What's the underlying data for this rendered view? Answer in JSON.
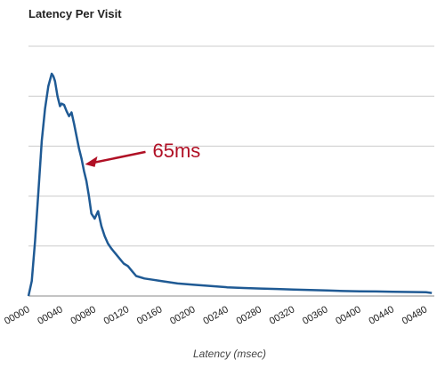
{
  "chart_data": {
    "type": "line",
    "title": "Latency Per Visit",
    "xlabel": "Latency (msec)",
    "ylabel": "",
    "xlim": [
      0,
      490
    ],
    "ylim": [
      0,
      100
    ],
    "x_ticks": [
      0,
      40,
      80,
      120,
      160,
      200,
      240,
      280,
      320,
      360,
      400,
      440,
      480
    ],
    "x_tick_labels": [
      "00000",
      "00040",
      "00080",
      "00120",
      "00160",
      "00200",
      "00240",
      "00280",
      "00320",
      "00360",
      "00400",
      "00440",
      "00480"
    ],
    "y_gridlines": [
      20,
      40,
      60,
      80,
      100
    ],
    "grid": true,
    "series": [
      {
        "color": "#1f5a94",
        "x": [
          0,
          4,
          8,
          12,
          16,
          20,
          24,
          28,
          30,
          32,
          35,
          38,
          40,
          43,
          46,
          49,
          52,
          55,
          58,
          61,
          64,
          67,
          70,
          73,
          76,
          80,
          84,
          88,
          92,
          96,
          100,
          105,
          110,
          115,
          120,
          125,
          130,
          140,
          150,
          160,
          170,
          180,
          200,
          220,
          240,
          260,
          280,
          300,
          320,
          340,
          360,
          380,
          400,
          420,
          440,
          460,
          480,
          487
        ],
        "y": [
          0,
          6,
          22,
          42,
          62,
          75,
          84,
          89,
          88,
          86,
          80,
          76,
          77,
          76.5,
          74,
          72,
          73.5,
          69,
          64,
          59,
          55,
          50,
          46,
          40,
          33,
          31,
          34,
          28,
          24,
          21,
          19,
          17,
          15,
          13,
          12,
          10,
          8,
          7,
          6.5,
          6,
          5.5,
          5,
          4.5,
          4,
          3.5,
          3.2,
          3.0,
          2.8,
          2.6,
          2.4,
          2.2,
          2.0,
          1.9,
          1.8,
          1.7,
          1.6,
          1.5,
          1.2
        ]
      }
    ],
    "annotation": {
      "text": "65ms",
      "x": 65,
      "y": 52,
      "color": "#b01025"
    }
  }
}
